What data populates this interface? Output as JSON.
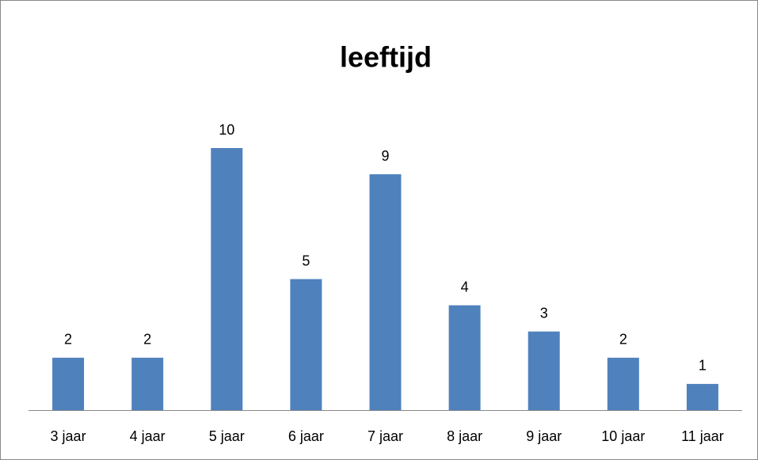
{
  "chart_data": {
    "type": "bar",
    "title": "leeftijd",
    "categories": [
      "3 jaar",
      "4 jaar",
      "5 jaar",
      "6 jaar",
      "7 jaar",
      "8 jaar",
      "9 jaar",
      "10 jaar",
      "11 jaar"
    ],
    "values": [
      2,
      2,
      10,
      5,
      9,
      4,
      3,
      2,
      1
    ],
    "color": "#4f81bd",
    "data_labels": true
  }
}
